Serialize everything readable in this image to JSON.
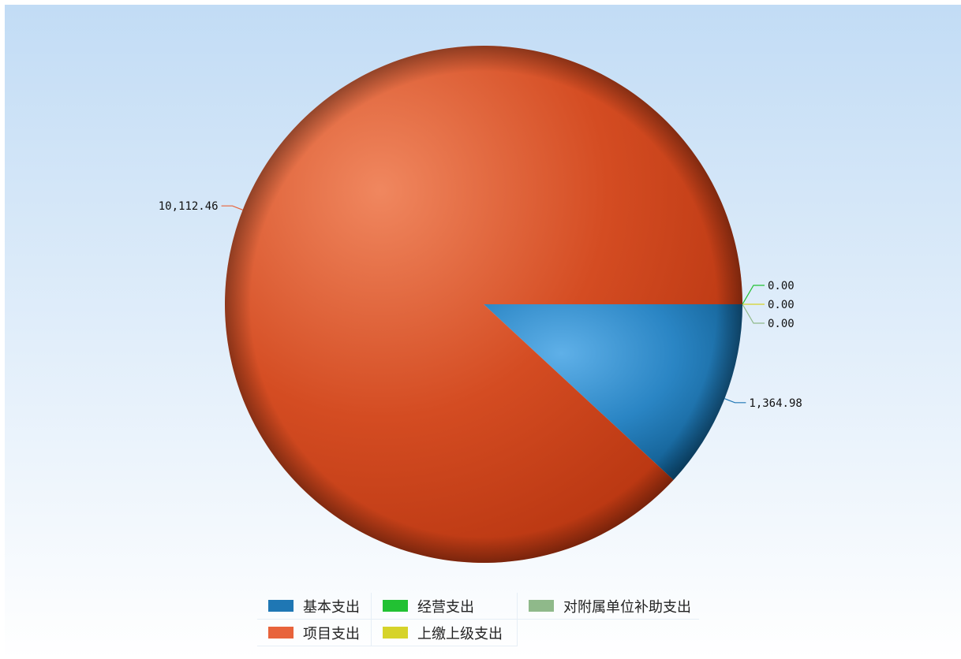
{
  "chart_data": {
    "type": "pie",
    "slices": [
      {
        "name": "基本支出",
        "value": 1364.98,
        "label": "1,364.98",
        "color": "#1f77b4"
      },
      {
        "name": "项目支出",
        "value": 10112.46,
        "label": "10,112.46",
        "color": "#e8633b"
      },
      {
        "name": "经营支出",
        "value": 0.0,
        "label": "0.00",
        "color": "#22c133"
      },
      {
        "name": "上缴上级支出",
        "value": 0.0,
        "label": "0.00",
        "color": "#d6d32a"
      },
      {
        "name": "对附属单位补助支出",
        "value": 0.0,
        "label": "0.00",
        "color": "#8fb98a"
      }
    ],
    "legend_position": "bottom",
    "background": "#c2dcf5"
  }
}
